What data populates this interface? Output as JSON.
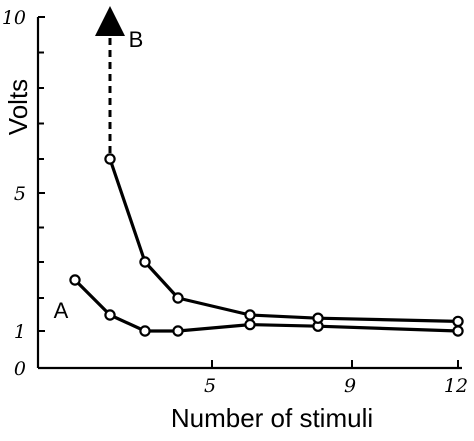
{
  "chart_data": {
    "type": "line",
    "xlabel": "Number of stimuli",
    "ylabel": "Volts",
    "xlim": [
      0,
      12
    ],
    "ylim": [
      0,
      10
    ],
    "x_ticks": [
      {
        "value": 5,
        "label": "5"
      },
      {
        "value": 9,
        "label": "9"
      },
      {
        "value": 12,
        "label": "12"
      }
    ],
    "y_ticks": [
      {
        "value": 0,
        "label": "0"
      },
      {
        "value": 1,
        "label": "1"
      },
      {
        "value": 5,
        "label": "5"
      },
      {
        "value": 10,
        "label": "10"
      }
    ],
    "y_minor_ticks": [
      2,
      3,
      4,
      6,
      7,
      8,
      9
    ],
    "series": [
      {
        "name": "A",
        "x": [
          1,
          2,
          3,
          4,
          6,
          8,
          12
        ],
        "values": [
          2.5,
          1.5,
          1.0,
          1.0,
          1.2,
          1.15,
          1.0
        ]
      },
      {
        "name": "B",
        "x": [
          2,
          3,
          4,
          6,
          8,
          12
        ],
        "values": [
          6.0,
          3.0,
          2.0,
          1.5,
          1.4,
          1.3
        ],
        "arrow_to": 10
      }
    ],
    "grid": false,
    "legend": "none"
  }
}
